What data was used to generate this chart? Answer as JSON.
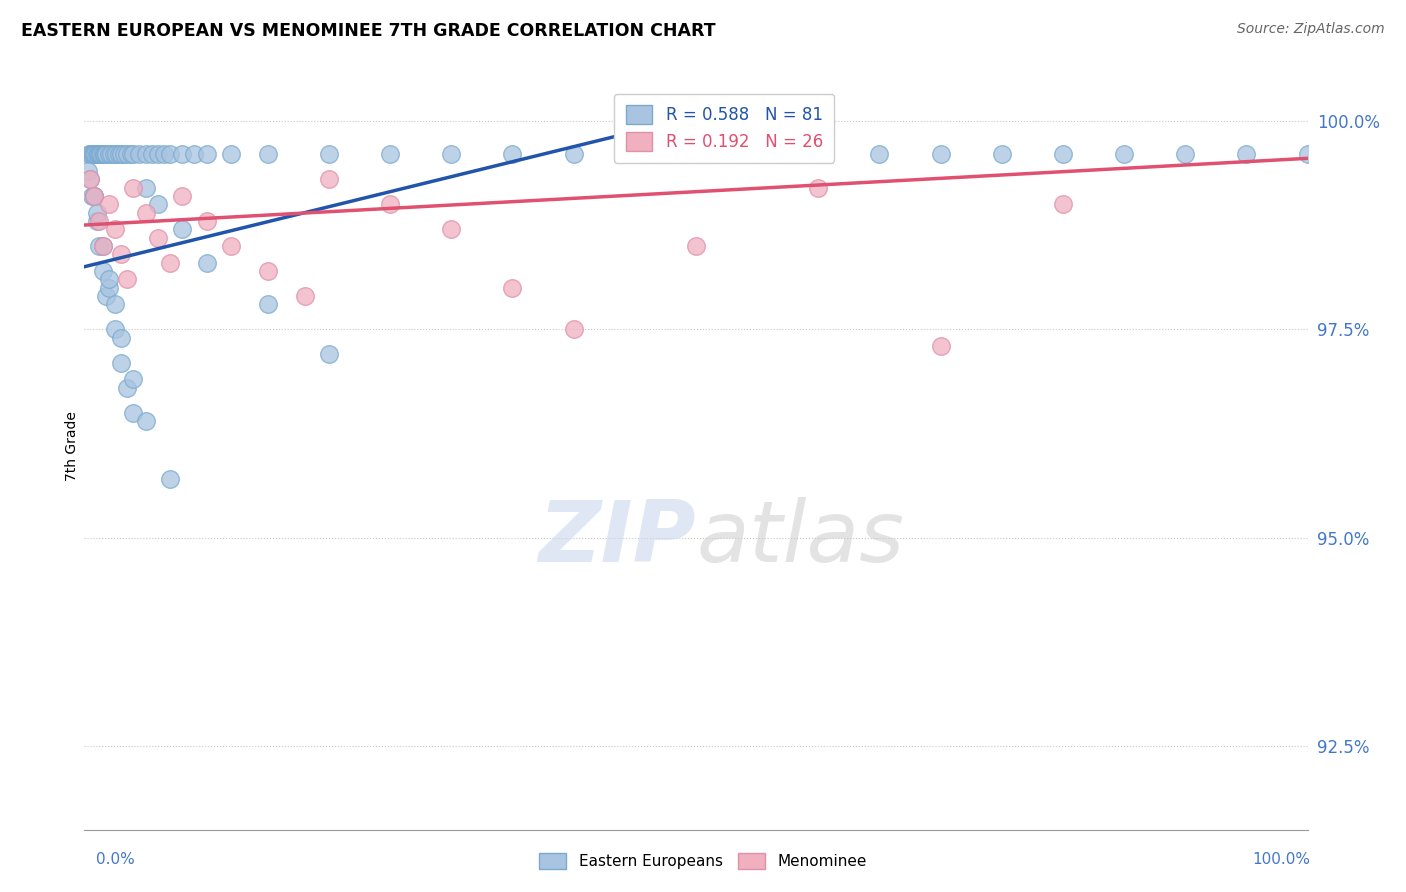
{
  "title": "EASTERN EUROPEAN VS MENOMINEE 7TH GRADE CORRELATION CHART",
  "source_text": "Source: ZipAtlas.com",
  "ylabel": "7th Grade",
  "legend_blue_label": "Eastern Europeans",
  "legend_pink_label": "Menominee",
  "blue_R": 0.588,
  "blue_N": 81,
  "pink_R": 0.192,
  "pink_N": 26,
  "blue_color": "#a8c4e0",
  "blue_edge_color": "#7aaad0",
  "blue_line_color": "#2255aa",
  "pink_color": "#f0b0c0",
  "pink_edge_color": "#e090a8",
  "pink_line_color": "#e05070",
  "ylim_min": 91.5,
  "ylim_max": 100.7,
  "xlim_min": 0.0,
  "xlim_max": 100.0,
  "yticks": [
    92.5,
    95.0,
    97.5,
    100.0
  ],
  "ytick_labels": [
    "92.5%",
    "95.0%",
    "97.5%",
    "100.0%"
  ],
  "blue_line_x0": 0.0,
  "blue_line_y0": 98.25,
  "blue_line_x1": 50.0,
  "blue_line_y1": 100.05,
  "pink_line_x0": 0.0,
  "pink_line_y0": 98.75,
  "pink_line_x1": 100.0,
  "pink_line_y1": 99.55,
  "blue_x": [
    0.4,
    0.5,
    0.6,
    0.7,
    0.8,
    0.9,
    1.0,
    1.1,
    1.2,
    1.3,
    1.4,
    1.5,
    1.6,
    1.7,
    1.8,
    2.0,
    2.2,
    2.4,
    2.6,
    2.8,
    3.0,
    3.2,
    3.5,
    3.8,
    4.0,
    4.5,
    5.0,
    5.5,
    6.0,
    6.5,
    7.0,
    8.0,
    9.0,
    10.0,
    12.0,
    15.0,
    20.0,
    25.0,
    30.0,
    35.0,
    40.0,
    45.0,
    50.0,
    55.0,
    60.0,
    65.0,
    70.0,
    75.0,
    80.0,
    85.0,
    90.0,
    95.0,
    100.0,
    0.6,
    0.8,
    1.0,
    1.2,
    1.5,
    1.8,
    2.0,
    2.5,
    3.0,
    3.5,
    4.0,
    5.0,
    6.0,
    8.0,
    10.0,
    15.0,
    20.0,
    0.3,
    0.5,
    0.8,
    1.0,
    1.5,
    2.0,
    2.5,
    3.0,
    4.0,
    5.0,
    7.0
  ],
  "blue_y": [
    99.6,
    99.6,
    99.6,
    99.6,
    99.6,
    99.6,
    99.6,
    99.6,
    99.6,
    99.6,
    99.6,
    99.6,
    99.6,
    99.6,
    99.6,
    99.6,
    99.6,
    99.6,
    99.6,
    99.6,
    99.6,
    99.6,
    99.6,
    99.6,
    99.6,
    99.6,
    99.6,
    99.6,
    99.6,
    99.6,
    99.6,
    99.6,
    99.6,
    99.6,
    99.6,
    99.6,
    99.6,
    99.6,
    99.6,
    99.6,
    99.6,
    99.6,
    99.6,
    99.6,
    99.6,
    99.6,
    99.6,
    99.6,
    99.6,
    99.6,
    99.6,
    99.6,
    99.6,
    99.1,
    99.1,
    98.8,
    98.5,
    98.2,
    97.9,
    98.0,
    97.5,
    97.1,
    96.8,
    96.5,
    99.2,
    99.0,
    98.7,
    98.3,
    97.8,
    97.2,
    99.4,
    99.3,
    99.1,
    98.9,
    98.5,
    98.1,
    97.8,
    97.4,
    96.9,
    96.4,
    95.7
  ],
  "pink_x": [
    0.5,
    0.8,
    1.2,
    1.5,
    2.0,
    2.5,
    3.0,
    3.5,
    4.0,
    5.0,
    6.0,
    7.0,
    8.0,
    10.0,
    12.0,
    15.0,
    18.0,
    20.0,
    25.0,
    30.0,
    35.0,
    40.0,
    50.0,
    60.0,
    70.0,
    80.0
  ],
  "pink_y": [
    99.3,
    99.1,
    98.8,
    98.5,
    99.0,
    98.7,
    98.4,
    98.1,
    99.2,
    98.9,
    98.6,
    98.3,
    99.1,
    98.8,
    98.5,
    98.2,
    97.9,
    99.3,
    99.0,
    98.7,
    98.0,
    97.5,
    98.5,
    99.2,
    97.3,
    99.0
  ]
}
